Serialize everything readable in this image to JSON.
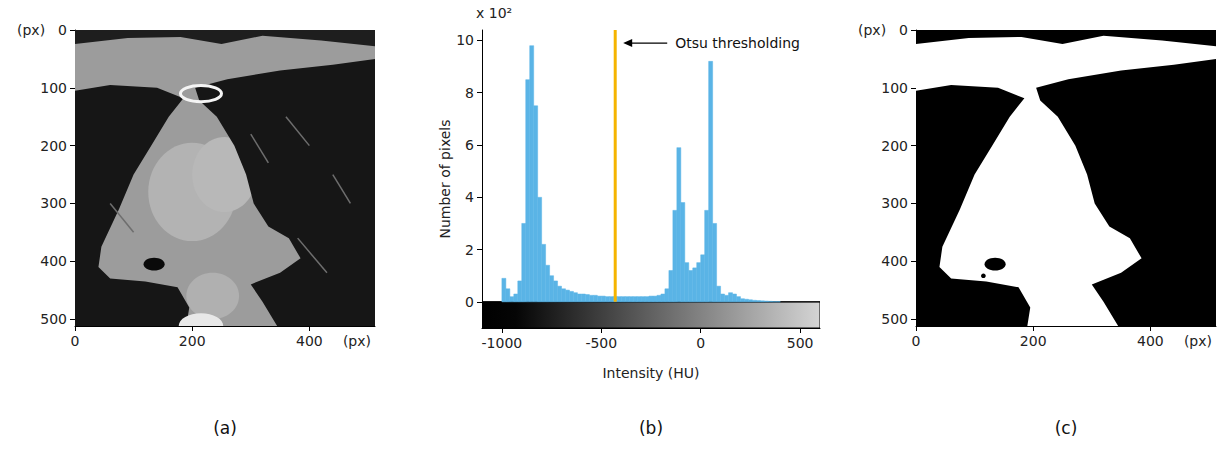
{
  "chart_data": [
    {
      "type": "image",
      "panel": "(a)",
      "xlabel": "(px)",
      "ylabel": "(px)",
      "xlim": [
        0,
        512
      ],
      "ylim": [
        512,
        0
      ],
      "xticks": [
        0,
        200,
        400
      ],
      "yticks": [
        0,
        100,
        200,
        300,
        400,
        500
      ]
    },
    {
      "type": "histogram",
      "panel": "(b)",
      "xlabel": "Intensity (HU)",
      "ylabel": "Number of pixels",
      "color": "#5ab4e6",
      "bins": [
        -1000,
        -980,
        -960,
        -940,
        -920,
        -900,
        -880,
        -860,
        -840,
        -820,
        -800,
        -780,
        -760,
        -740,
        -720,
        -700,
        -680,
        -660,
        -640,
        -620,
        -600,
        -580,
        -560,
        -540,
        -520,
        -500,
        -480,
        -460,
        -440,
        -420,
        -400,
        -380,
        -360,
        -340,
        -320,
        -300,
        -280,
        -260,
        -240,
        -220,
        -200,
        -180,
        -160,
        -140,
        -120,
        -100,
        -80,
        -60,
        -40,
        -20,
        0,
        20,
        40,
        60,
        80,
        100,
        120,
        140,
        160,
        180,
        200,
        220,
        240,
        260,
        280,
        300,
        320,
        340,
        360,
        380,
        400
      ],
      "values": [
        0.9,
        0.5,
        0.2,
        0.3,
        0.8,
        3.0,
        8.5,
        9.8,
        7.5,
        4.0,
        2.2,
        1.4,
        1.0,
        0.8,
        0.6,
        0.5,
        0.45,
        0.4,
        0.35,
        0.3,
        0.3,
        0.28,
        0.25,
        0.25,
        0.22,
        0.22,
        0.2,
        0.2,
        0.2,
        0.2,
        0.2,
        0.2,
        0.2,
        0.2,
        0.2,
        0.2,
        0.2,
        0.22,
        0.22,
        0.25,
        0.3,
        0.5,
        1.2,
        3.5,
        5.9,
        3.8,
        1.5,
        1.2,
        1.3,
        1.5,
        1.8,
        3.5,
        9.2,
        3.0,
        0.6,
        0.3,
        0.25,
        0.35,
        0.3,
        0.2,
        0.12,
        0.1,
        0.08,
        0.06,
        0.05,
        0.04,
        0.03,
        0.02,
        0.01,
        0.01
      ],
      "xlim": [
        -1100,
        600
      ],
      "ylim": [
        -1,
        10.4
      ],
      "xticks": [
        -1000,
        -500,
        0,
        500
      ],
      "yticks": [
        0,
        2,
        4,
        6,
        8,
        10
      ],
      "annotations": [
        {
          "text": "x 10²"
        },
        {
          "text": "Otsu thresholding",
          "x": -430,
          "color": "#f5b400"
        }
      ]
    },
    {
      "type": "mask",
      "panel": "(c)",
      "xlabel": "(px)",
      "ylabel": "(px)",
      "xlim": [
        0,
        512
      ],
      "ylim": [
        512,
        0
      ],
      "xticks": [
        0,
        200,
        400
      ],
      "yticks": [
        0,
        100,
        200,
        300,
        400,
        500
      ]
    }
  ]
}
